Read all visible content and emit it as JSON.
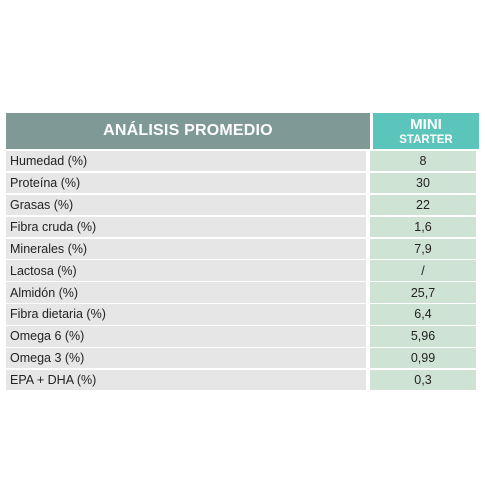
{
  "table": {
    "header_label": "ANÁLISIS PROMEDIO",
    "column_title_line1": "MINI",
    "column_title_line2": "STARTER",
    "rows": [
      {
        "label": "Humedad (%)",
        "value": "8"
      },
      {
        "label": "Proteína (%)",
        "value": "30"
      },
      {
        "label": "Grasas (%)",
        "value": "22"
      },
      {
        "label": "Fibra cruda (%)",
        "value": "1,6"
      },
      {
        "label": "Minerales (%)",
        "value": "7,9"
      },
      {
        "label": "Lactosa (%)",
        "value": "/"
      },
      {
        "label": "Almidón (%)",
        "value": "25,7"
      },
      {
        "label": "Fibra dietaria (%)",
        "value": "6,4"
      },
      {
        "label": "Omega 6 (%)",
        "value": "5,96"
      },
      {
        "label": "Omega 3 (%)",
        "value": "0,99"
      },
      {
        "label": "EPA + DHA (%)",
        "value": "0,3"
      }
    ]
  },
  "colors": {
    "header_left": "#7f9996",
    "header_right": "#5bc5bb",
    "label_cell": "#e6e6e6",
    "value_cell": "#cfe3d4"
  }
}
